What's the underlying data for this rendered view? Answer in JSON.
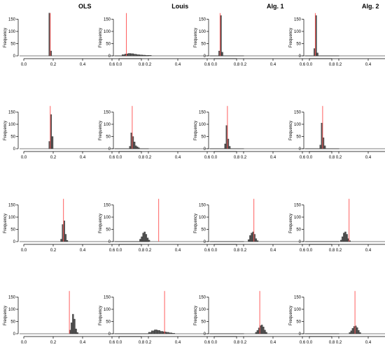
{
  "chart_data": {
    "type": "bar",
    "layout": "4x4 grid of histograms",
    "column_titles": [
      "OLS",
      "Louis",
      "Alg. 1",
      "Alg. 2"
    ],
    "ylabel": "Frequency",
    "xlim": [
      0,
      0.85
    ],
    "ylim": [
      0,
      180
    ],
    "x_ticks": [
      0.0,
      0.2,
      0.4,
      0.6,
      0.8
    ],
    "x_tick_labels": [
      "0.0",
      "0.2",
      "0.4",
      "0.6",
      "0.8"
    ],
    "y_ticks": [
      0,
      50,
      100,
      150
    ],
    "y_tick_labels": [
      "0",
      "50",
      "100",
      "150"
    ],
    "bar_color": "#555555",
    "reference_line_color": "#ff4d4d",
    "panels": [
      [
        {
          "ref": 0.18,
          "bins": [
            [
              0.17,
              0.18,
              175
            ],
            [
              0.18,
              0.19,
              20
            ]
          ]
        },
        {
          "ref": 0.05,
          "bins": [
            [
              0.02,
              0.04,
              5
            ],
            [
              0.04,
              0.06,
              8
            ],
            [
              0.06,
              0.08,
              10
            ],
            [
              0.08,
              0.1,
              9
            ],
            [
              0.1,
              0.12,
              7
            ],
            [
              0.12,
              0.14,
              5
            ],
            [
              0.14,
              0.16,
              4
            ],
            [
              0.16,
              0.18,
              3
            ],
            [
              0.18,
              0.2,
              2
            ],
            [
              0.2,
              0.22,
              2
            ]
          ]
        },
        {
          "ref": 0.04,
          "bins": [
            [
              0.03,
              0.04,
              20
            ],
            [
              0.04,
              0.05,
              165
            ],
            [
              0.05,
              0.06,
              15
            ]
          ]
        },
        {
          "ref": 0.04,
          "bins": [
            [
              0.03,
              0.04,
              30
            ],
            [
              0.04,
              0.05,
              165
            ],
            [
              0.05,
              0.06,
              12
            ]
          ]
        }
      ],
      [
        {
          "ref": 0.18,
          "bins": [
            [
              0.17,
              0.18,
              30
            ],
            [
              0.18,
              0.19,
              140
            ],
            [
              0.19,
              0.2,
              50
            ]
          ]
        },
        {
          "ref": 0.09,
          "bins": [
            [
              0.07,
              0.08,
              10
            ],
            [
              0.08,
              0.09,
              65
            ],
            [
              0.09,
              0.1,
              50
            ],
            [
              0.1,
              0.11,
              28
            ],
            [
              0.11,
              0.12,
              12
            ],
            [
              0.12,
              0.13,
              8
            ],
            [
              0.13,
              0.14,
              4
            ]
          ]
        },
        {
          "ref": 0.09,
          "bins": [
            [
              0.07,
              0.08,
              20
            ],
            [
              0.08,
              0.09,
              95
            ],
            [
              0.09,
              0.1,
              40
            ],
            [
              0.1,
              0.11,
              10
            ]
          ]
        },
        {
          "ref": 0.09,
          "bins": [
            [
              0.07,
              0.08,
              15
            ],
            [
              0.08,
              0.09,
              105
            ],
            [
              0.09,
              0.1,
              45
            ],
            [
              0.1,
              0.11,
              12
            ]
          ]
        }
      ],
      [
        {
          "ref": 0.27,
          "bins": [
            [
              0.25,
              0.26,
              10
            ],
            [
              0.26,
              0.27,
              70
            ],
            [
              0.27,
              0.28,
              85
            ],
            [
              0.28,
              0.29,
              30
            ],
            [
              0.29,
              0.3,
              5
            ]
          ]
        },
        {
          "ref": 0.27,
          "bins": [
            [
              0.14,
              0.15,
              10
            ],
            [
              0.15,
              0.16,
              20
            ],
            [
              0.16,
              0.17,
              35
            ],
            [
              0.17,
              0.18,
              40
            ],
            [
              0.18,
              0.19,
              30
            ],
            [
              0.19,
              0.2,
              15
            ],
            [
              0.2,
              0.21,
              6
            ]
          ]
        },
        {
          "ref": 0.27,
          "bins": [
            [
              0.23,
              0.24,
              8
            ],
            [
              0.24,
              0.25,
              25
            ],
            [
              0.25,
              0.26,
              35
            ],
            [
              0.26,
              0.27,
              40
            ],
            [
              0.27,
              0.28,
              30
            ],
            [
              0.28,
              0.29,
              12
            ],
            [
              0.29,
              0.3,
              4
            ]
          ]
        },
        {
          "ref": 0.27,
          "bins": [
            [
              0.21,
              0.22,
              6
            ],
            [
              0.22,
              0.23,
              20
            ],
            [
              0.23,
              0.24,
              35
            ],
            [
              0.24,
              0.25,
              40
            ],
            [
              0.25,
              0.26,
              30
            ],
            [
              0.26,
              0.27,
              12
            ],
            [
              0.27,
              0.28,
              4
            ]
          ]
        }
      ],
      [
        {
          "ref": 0.31,
          "bins": [
            [
              0.31,
              0.32,
              15
            ],
            [
              0.32,
              0.33,
              45
            ],
            [
              0.33,
              0.34,
              80
            ],
            [
              0.34,
              0.35,
              60
            ],
            [
              0.35,
              0.36,
              20
            ],
            [
              0.36,
              0.37,
              5
            ]
          ]
        },
        {
          "ref": 0.31,
          "bins": [
            [
              0.2,
              0.22,
              6
            ],
            [
              0.22,
              0.24,
              12
            ],
            [
              0.24,
              0.26,
              16
            ],
            [
              0.26,
              0.28,
              14
            ],
            [
              0.28,
              0.3,
              10
            ],
            [
              0.3,
              0.32,
              8
            ],
            [
              0.32,
              0.34,
              6
            ],
            [
              0.34,
              0.36,
              4
            ],
            [
              0.36,
              0.38,
              2
            ]
          ]
        },
        {
          "ref": 0.31,
          "bins": [
            [
              0.28,
              0.29,
              6
            ],
            [
              0.29,
              0.3,
              14
            ],
            [
              0.3,
              0.31,
              24
            ],
            [
              0.31,
              0.32,
              33
            ],
            [
              0.32,
              0.33,
              36
            ],
            [
              0.33,
              0.34,
              28
            ],
            [
              0.34,
              0.35,
              15
            ],
            [
              0.35,
              0.36,
              6
            ]
          ]
        },
        {
          "ref": 0.31,
          "bins": [
            [
              0.27,
              0.28,
              5
            ],
            [
              0.28,
              0.29,
              12
            ],
            [
              0.29,
              0.3,
              22
            ],
            [
              0.3,
              0.31,
              30
            ],
            [
              0.31,
              0.32,
              32
            ],
            [
              0.32,
              0.33,
              25
            ],
            [
              0.33,
              0.34,
              14
            ],
            [
              0.34,
              0.35,
              5
            ]
          ]
        }
      ]
    ]
  }
}
